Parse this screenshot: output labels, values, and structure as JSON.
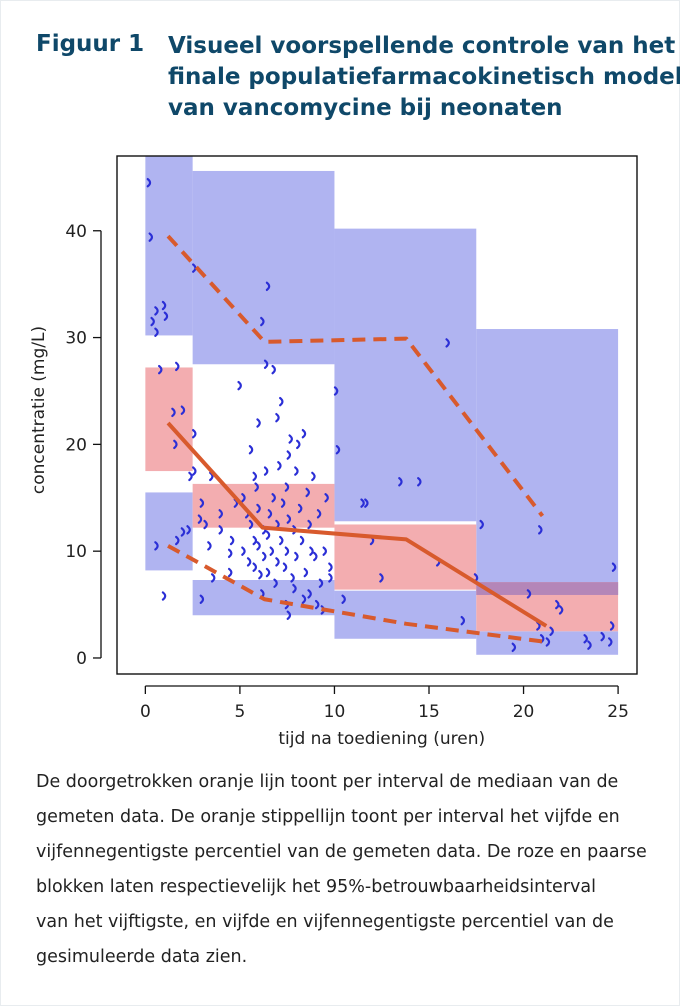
{
  "figure": {
    "label": "Figuur 1",
    "title_lines": [
      "Visueel voorspellende controle van het",
      "finale populatiefarmacokinetisch model",
      "van vancomycine bij neonaten"
    ]
  },
  "caption_lines": [
    "De doorgetrokken oranje lijn toont per interval de mediaan van de",
    "gemeten data. De oranje stippellijn toont per interval het vijfde en",
    "vijfennegentigste percentiel van de gemeten data. De roze en paarse",
    "blokken laten respectievelijk het 95%-betrouwbaarheidsinterval",
    "van het vijftigste, en vijfde en vijfennegentigste percentiel van de",
    "gesimuleerde data zien."
  ],
  "colors": {
    "title": "#0f4869",
    "blue_block": "#a9aef0",
    "pink_block": "#f2a9ac",
    "purple_overlap": "#b486b8",
    "line": "#d85a2d",
    "points": "#2b2fd6"
  },
  "chart_data": {
    "type": "scatter",
    "title": "",
    "xlabel": "tijd na toediening (uren)",
    "ylabel": "concentratie (mg/L)",
    "xlim": [
      -1.5,
      26
    ],
    "ylim": [
      -1.5,
      47
    ],
    "xticks": [
      0,
      5,
      10,
      15,
      20,
      25
    ],
    "yticks": [
      0,
      10,
      20,
      30,
      40
    ],
    "grid": false,
    "blocks_percentile_ci": [
      {
        "x0": 0,
        "x1": 2.5,
        "y0": 8.2,
        "y1": 15.5
      },
      {
        "x0": 0,
        "x1": 2.5,
        "y0": 30.2,
        "y1": 47
      },
      {
        "x0": 2.5,
        "x1": 10,
        "y0": 4.0,
        "y1": 7.3
      },
      {
        "x0": 2.5,
        "x1": 10,
        "y0": 27.5,
        "y1": 45.6
      },
      {
        "x0": 10,
        "x1": 17.5,
        "y0": 1.8,
        "y1": 6.3
      },
      {
        "x0": 10,
        "x1": 17.5,
        "y0": 12.8,
        "y1": 40.2
      },
      {
        "x0": 17.5,
        "x1": 25,
        "y0": 0.3,
        "y1": 2.5
      },
      {
        "x0": 17.5,
        "x1": 25,
        "y0": 5.9,
        "y1": 30.8
      }
    ],
    "blocks_median_ci": [
      {
        "x0": 0,
        "x1": 2.5,
        "y0": 17.5,
        "y1": 27.2
      },
      {
        "x0": 2.5,
        "x1": 10,
        "y0": 12.2,
        "y1": 16.3
      },
      {
        "x0": 10,
        "x1": 17.5,
        "y0": 6.4,
        "y1": 12.5
      },
      {
        "x0": 17.5,
        "x1": 25,
        "y0": 2.5,
        "y1": 7.1
      }
    ],
    "series": [
      {
        "style": "solid",
        "x": [
          1.2,
          6.2,
          13.8,
          21.2
        ],
        "y": [
          22.0,
          12.2,
          11.1,
          3.0
        ]
      },
      {
        "style": "dashed",
        "x": [
          1.2,
          6.3,
          13.8,
          21.0
        ],
        "y": [
          39.5,
          29.6,
          29.9,
          13.3
        ]
      },
      {
        "style": "dashed",
        "x": [
          1.2,
          6.3,
          13.8,
          21.2
        ],
        "y": [
          10.5,
          5.5,
          3.2,
          1.5
        ]
      }
    ],
    "points": [
      [
        0.2,
        44.5
      ],
      [
        0.3,
        39.4
      ],
      [
        0.4,
        31.5
      ],
      [
        0.6,
        32.5
      ],
      [
        0.6,
        30.5
      ],
      [
        1.0,
        33.0
      ],
      [
        1.1,
        32.0
      ],
      [
        0.8,
        27.0
      ],
      [
        1.7,
        27.3
      ],
      [
        1.5,
        23.0
      ],
      [
        2.0,
        23.2
      ],
      [
        1.6,
        20.0
      ],
      [
        2.4,
        17.0
      ],
      [
        2.6,
        17.5
      ],
      [
        2.6,
        21.0
      ],
      [
        2.0,
        11.8
      ],
      [
        1.7,
        11.0
      ],
      [
        2.3,
        12.0
      ],
      [
        0.6,
        10.5
      ],
      [
        1.0,
        5.8
      ],
      [
        2.6,
        36.5
      ],
      [
        3.0,
        5.5
      ],
      [
        3.0,
        14.5
      ],
      [
        2.9,
        13.0
      ],
      [
        3.2,
        12.5
      ],
      [
        3.4,
        10.5
      ],
      [
        3.5,
        17.0
      ],
      [
        3.6,
        7.5
      ],
      [
        4.0,
        13.5
      ],
      [
        4.0,
        12.0
      ],
      [
        4.5,
        9.8
      ],
      [
        4.6,
        11.0
      ],
      [
        4.8,
        14.5
      ],
      [
        4.5,
        8.0
      ],
      [
        5.0,
        25.5
      ],
      [
        5.2,
        15.0
      ],
      [
        5.2,
        10.0
      ],
      [
        5.4,
        13.5
      ],
      [
        5.5,
        9.0
      ],
      [
        5.6,
        12.5
      ],
      [
        5.8,
        11.0
      ],
      [
        5.8,
        8.5
      ],
      [
        5.9,
        16.0
      ],
      [
        6.0,
        14.0
      ],
      [
        6.0,
        10.5
      ],
      [
        6.1,
        7.8
      ],
      [
        6.2,
        6.0
      ],
      [
        6.3,
        12.0
      ],
      [
        6.3,
        9.5
      ],
      [
        6.4,
        17.5
      ],
      [
        6.5,
        11.5
      ],
      [
        6.5,
        8.0
      ],
      [
        6.6,
        13.5
      ],
      [
        6.7,
        10.0
      ],
      [
        6.8,
        15.0
      ],
      [
        6.9,
        7.0
      ],
      [
        7.0,
        12.5
      ],
      [
        7.0,
        9.0
      ],
      [
        7.1,
        18.0
      ],
      [
        7.2,
        11.0
      ],
      [
        7.3,
        14.5
      ],
      [
        7.4,
        8.5
      ],
      [
        7.5,
        16.0
      ],
      [
        7.5,
        10.0
      ],
      [
        7.6,
        13.0
      ],
      [
        7.7,
        20.5
      ],
      [
        7.8,
        7.5
      ],
      [
        7.9,
        12.0
      ],
      [
        8.0,
        17.5
      ],
      [
        8.0,
        9.5
      ],
      [
        8.2,
        14.0
      ],
      [
        8.3,
        11.0
      ],
      [
        8.4,
        21.0
      ],
      [
        8.5,
        8.0
      ],
      [
        8.6,
        15.5
      ],
      [
        8.7,
        12.5
      ],
      [
        8.8,
        10.0
      ],
      [
        8.9,
        17.0
      ],
      [
        9.0,
        9.5
      ],
      [
        9.2,
        13.5
      ],
      [
        9.3,
        7.0
      ],
      [
        9.5,
        10.0
      ],
      [
        9.6,
        15.0
      ],
      [
        9.8,
        8.5
      ],
      [
        7.0,
        22.5
      ],
      [
        7.2,
        24.0
      ],
      [
        7.6,
        19.0
      ],
      [
        8.1,
        20.0
      ],
      [
        6.4,
        27.5
      ],
      [
        6.8,
        27.0
      ],
      [
        6.2,
        31.5
      ],
      [
        6.5,
        34.8
      ],
      [
        6.0,
        22.0
      ],
      [
        5.6,
        19.5
      ],
      [
        5.8,
        17.0
      ],
      [
        7.5,
        5.0
      ],
      [
        7.6,
        4.0
      ],
      [
        7.9,
        6.5
      ],
      [
        8.4,
        5.5
      ],
      [
        8.7,
        6.0
      ],
      [
        9.1,
        5.0
      ],
      [
        9.4,
        4.5
      ],
      [
        9.8,
        7.5
      ],
      [
        10.1,
        25.0
      ],
      [
        10.2,
        19.5
      ],
      [
        10.5,
        5.5
      ],
      [
        11.5,
        14.5
      ],
      [
        11.7,
        14.5
      ],
      [
        12.0,
        11.0
      ],
      [
        12.5,
        7.5
      ],
      [
        13.5,
        16.5
      ],
      [
        14.5,
        16.5
      ],
      [
        15.5,
        9.0
      ],
      [
        16.0,
        29.5
      ],
      [
        16.8,
        3.5
      ],
      [
        17.5,
        7.5
      ],
      [
        17.8,
        12.5
      ],
      [
        19.5,
        1.0
      ],
      [
        20.3,
        6.0
      ],
      [
        20.8,
        3.0
      ],
      [
        20.9,
        12.0
      ],
      [
        21.0,
        1.8
      ],
      [
        21.5,
        2.5
      ],
      [
        21.8,
        5.0
      ],
      [
        21.3,
        1.5
      ],
      [
        23.3,
        1.8
      ],
      [
        23.5,
        1.2
      ],
      [
        24.2,
        2.0
      ],
      [
        24.6,
        1.5
      ],
      [
        24.8,
        8.5
      ],
      [
        24.7,
        3.0
      ],
      [
        22.0,
        4.5
      ]
    ]
  }
}
